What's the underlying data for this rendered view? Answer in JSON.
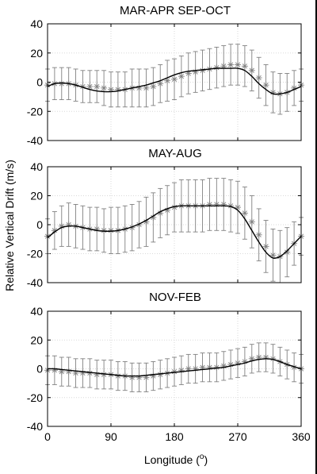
{
  "figure": {
    "ylabel": "Relative Vertical Drift (m/s)",
    "xlabel_main": "Longitude (",
    "xlabel_sup": "o",
    "xlabel_end": ")"
  },
  "colors": {
    "fit": "#000000",
    "data": "#808080",
    "grid": "#d9d9d9"
  },
  "chart_data": [
    {
      "type": "line",
      "title": "MAR-APR SEP-OCT",
      "xlim": [
        0,
        360
      ],
      "ylim": [
        -40,
        40
      ],
      "xticks": [
        0,
        90,
        180,
        270,
        360
      ],
      "yticks": [
        -40,
        -20,
        0,
        20,
        40
      ],
      "grid": true,
      "series": [
        {
          "style": "asterisk-with-errorbars",
          "x": [
            0,
            10,
            20,
            30,
            40,
            50,
            60,
            70,
            80,
            90,
            100,
            110,
            120,
            130,
            140,
            150,
            160,
            170,
            180,
            190,
            200,
            210,
            220,
            230,
            240,
            250,
            260,
            270,
            280,
            290,
            300,
            310,
            320,
            330,
            340,
            350,
            360
          ],
          "values": [
            -2,
            -1,
            -1,
            -1,
            -2,
            -3,
            -3,
            -3,
            -4,
            -5,
            -5,
            -5,
            -4,
            -4,
            -4,
            -3,
            -1,
            1,
            2,
            4,
            6,
            7,
            8,
            9,
            10,
            11,
            12,
            12,
            11,
            8,
            3,
            -2,
            -7,
            -8,
            -7,
            -4,
            -2
          ],
          "err": [
            11,
            11,
            11,
            11,
            11,
            11,
            11,
            11,
            12,
            12,
            12,
            12,
            13,
            13,
            13,
            13,
            13,
            14,
            14,
            14,
            14,
            14,
            14,
            14,
            14,
            14,
            14,
            14,
            14,
            14,
            14,
            14,
            14,
            14,
            13,
            12,
            11
          ]
        },
        {
          "style": "solid",
          "x": [
            0,
            10,
            20,
            30,
            40,
            50,
            60,
            70,
            80,
            90,
            100,
            110,
            120,
            130,
            140,
            150,
            160,
            170,
            180,
            190,
            200,
            210,
            220,
            230,
            240,
            250,
            260,
            270,
            280,
            290,
            300,
            310,
            320,
            330,
            340,
            350,
            360
          ],
          "values": [
            -3,
            -1,
            -0.5,
            -1,
            -2,
            -3.5,
            -5,
            -6,
            -6.5,
            -6.5,
            -6,
            -5,
            -4,
            -3,
            -2,
            -0.5,
            1,
            3,
            5,
            6.5,
            7.5,
            8,
            8.5,
            9,
            9.5,
            9.5,
            9.5,
            9.5,
            8,
            4,
            -1,
            -5,
            -8,
            -8,
            -7,
            -5,
            -3
          ]
        }
      ]
    },
    {
      "type": "line",
      "title": "MAY-AUG",
      "xlim": [
        0,
        360
      ],
      "ylim": [
        -40,
        40
      ],
      "xticks": [
        0,
        90,
        180,
        270,
        360
      ],
      "yticks": [
        -40,
        -20,
        0,
        20,
        40
      ],
      "grid": true,
      "series": [
        {
          "style": "asterisk-with-errorbars",
          "x": [
            0,
            10,
            20,
            30,
            40,
            50,
            60,
            70,
            80,
            90,
            100,
            110,
            120,
            130,
            140,
            150,
            160,
            170,
            180,
            190,
            200,
            210,
            220,
            230,
            240,
            250,
            260,
            270,
            280,
            290,
            300,
            310,
            320,
            330,
            340,
            350,
            360
          ],
          "values": [
            -8,
            -4,
            -1,
            0,
            -1,
            -2,
            -3,
            -3,
            -4,
            -4,
            -4,
            -3,
            -2,
            0,
            2,
            5,
            8,
            10,
            12,
            13,
            13,
            13,
            13,
            14,
            14,
            14,
            13,
            12,
            8,
            2,
            -7,
            -15,
            -21,
            -22,
            -19,
            -13,
            -8
          ],
          "err": [
            12,
            13,
            14,
            15,
            15,
            15,
            15,
            15,
            15,
            16,
            16,
            16,
            16,
            16,
            17,
            17,
            17,
            17,
            17,
            18,
            18,
            18,
            18,
            18,
            18,
            18,
            18,
            18,
            18,
            18,
            18,
            18,
            18,
            18,
            17,
            15,
            13
          ]
        },
        {
          "style": "solid",
          "x": [
            0,
            10,
            20,
            30,
            40,
            50,
            60,
            70,
            80,
            90,
            100,
            110,
            120,
            130,
            140,
            150,
            160,
            170,
            180,
            190,
            200,
            210,
            220,
            230,
            240,
            250,
            260,
            270,
            280,
            290,
            300,
            310,
            320,
            330,
            340,
            350,
            360
          ],
          "values": [
            -9,
            -5,
            -2,
            -1,
            -1,
            -2,
            -3,
            -4,
            -4.5,
            -4.5,
            -4,
            -3,
            -1.5,
            0.5,
            3,
            6,
            9,
            11,
            12.5,
            13,
            13,
            13,
            13,
            13,
            13,
            13,
            12.5,
            10,
            4,
            -4,
            -12,
            -19,
            -23,
            -22,
            -18,
            -13,
            -8
          ]
        }
      ]
    },
    {
      "type": "line",
      "title": "NOV-FEB",
      "xlim": [
        0,
        360
      ],
      "ylim": [
        -40,
        40
      ],
      "xticks": [
        0,
        90,
        180,
        270,
        360
      ],
      "yticks": [
        -40,
        -20,
        0,
        20,
        40
      ],
      "grid": true,
      "series": [
        {
          "style": "asterisk-with-errorbars",
          "x": [
            0,
            10,
            20,
            30,
            40,
            50,
            60,
            70,
            80,
            90,
            100,
            110,
            120,
            130,
            140,
            150,
            160,
            170,
            180,
            190,
            200,
            210,
            220,
            230,
            240,
            250,
            260,
            270,
            280,
            290,
            300,
            310,
            320,
            330,
            340,
            350,
            360
          ],
          "values": [
            -1,
            -1,
            -2,
            -2,
            -3,
            -3,
            -3,
            -4,
            -4,
            -4,
            -5,
            -5,
            -6,
            -6,
            -6,
            -5,
            -4,
            -3,
            -2,
            -1,
            0,
            0,
            1,
            1,
            1,
            2,
            3,
            4,
            5,
            7,
            8,
            8,
            7,
            5,
            3,
            1,
            0
          ],
          "err": [
            10,
            10,
            10,
            10,
            10,
            10,
            10,
            10,
            10,
            10,
            10,
            10,
            10,
            10,
            10,
            10,
            10,
            10,
            10,
            10,
            10,
            10,
            10,
            10,
            10,
            10,
            10,
            10,
            10,
            10,
            10,
            10,
            10,
            10,
            10,
            10,
            10
          ]
        },
        {
          "style": "solid",
          "x": [
            0,
            10,
            20,
            30,
            40,
            50,
            60,
            70,
            80,
            90,
            100,
            110,
            120,
            130,
            140,
            150,
            160,
            170,
            180,
            190,
            200,
            210,
            220,
            230,
            240,
            250,
            260,
            270,
            280,
            290,
            300,
            310,
            320,
            330,
            340,
            350,
            360
          ],
          "values": [
            0,
            0,
            -0.5,
            -1,
            -1.5,
            -2,
            -2.5,
            -3,
            -3.5,
            -4,
            -4.5,
            -5,
            -5,
            -5,
            -4.5,
            -4,
            -3.5,
            -3,
            -2.5,
            -2,
            -1.5,
            -1,
            -0.5,
            0,
            0.5,
            1,
            2,
            3,
            4,
            5.5,
            6.5,
            7,
            6.5,
            5,
            3,
            1.5,
            0
          ]
        }
      ]
    }
  ]
}
